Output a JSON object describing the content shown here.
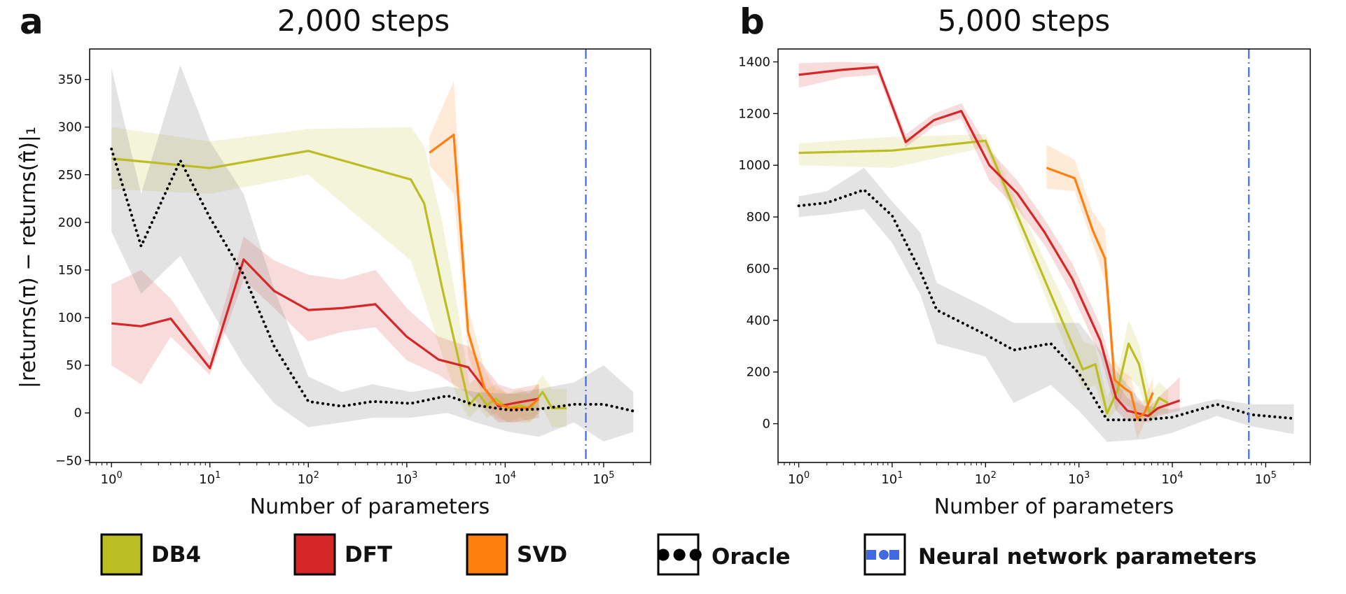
{
  "figure": {
    "ylabel": "|returns(π) − returns(π̂)|₁",
    "legend": [
      {
        "key": "db4",
        "label": "DB4",
        "color": "#bcbd22",
        "type": "swatch"
      },
      {
        "key": "dft",
        "label": "DFT",
        "color": "#d62728",
        "type": "swatch"
      },
      {
        "key": "svd",
        "label": "SVD",
        "color": "#ff7f0e",
        "type": "swatch"
      },
      {
        "key": "oracle",
        "label": "Oracle",
        "color": "#000000",
        "type": "dotted"
      },
      {
        "key": "nn",
        "label": "Neural network parameters",
        "color": "#4169e1",
        "type": "dashdot"
      }
    ]
  },
  "chart_data": [
    {
      "type": "line",
      "panel_label": "a",
      "title": "2,000 steps",
      "xlabel": "Number of parameters",
      "ylabel": "|returns(π) − returns(π̂)|₁",
      "xscale": "log",
      "xlim": [
        0.6,
        300000
      ],
      "ylim": [
        -52,
        382
      ],
      "yticks": [
        -50,
        0,
        50,
        100,
        150,
        200,
        250,
        300,
        350
      ],
      "ytick_labels": [
        "−50",
        "0",
        "50",
        "100",
        "150",
        "200",
        "250",
        "300",
        "350"
      ],
      "xticks": [
        1,
        10,
        100,
        1000,
        10000,
        100000
      ],
      "xtick_labels": [
        [
          "10",
          "0"
        ],
        [
          "10",
          "1"
        ],
        [
          "10",
          "2"
        ],
        [
          "10",
          "3"
        ],
        [
          "10",
          "4"
        ],
        [
          "10",
          "5"
        ]
      ],
      "vline": {
        "x": 66000,
        "label": "Neural network parameters"
      },
      "series": [
        {
          "name": "DB4",
          "color": "#bcbd22",
          "style": "solid",
          "x": [
            1,
            10,
            100,
            1100,
            1500,
            2300,
            3300,
            4300,
            5400,
            6500,
            8000,
            10500,
            14000,
            18000,
            24000,
            30000,
            42000
          ],
          "y": [
            267,
            257,
            275,
            245,
            220,
            130,
            60,
            8,
            20,
            8,
            15,
            5,
            8,
            5,
            22,
            5,
            5
          ],
          "lower": [
            235,
            230,
            250,
            160,
            120,
            60,
            15,
            -5,
            5,
            -5,
            0,
            -10,
            -5,
            -10,
            5,
            -15,
            -15
          ],
          "upper": [
            300,
            285,
            298,
            300,
            280,
            200,
            110,
            30,
            40,
            25,
            30,
            20,
            25,
            20,
            40,
            25,
            25
          ]
        },
        {
          "name": "DFT",
          "color": "#d62728",
          "style": "solid",
          "x": [
            1,
            2,
            4,
            10,
            22,
            45,
            100,
            220,
            480,
            1000,
            2100,
            4200,
            8500,
            12000,
            22000
          ],
          "y": [
            94,
            91,
            99,
            47,
            161,
            128,
            108,
            110,
            114,
            80,
            56,
            48,
            7,
            10,
            15
          ],
          "lower": [
            50,
            30,
            80,
            40,
            140,
            110,
            75,
            85,
            90,
            55,
            40,
            20,
            -10,
            -10,
            -5
          ],
          "upper": [
            135,
            150,
            120,
            60,
            185,
            160,
            145,
            140,
            150,
            110,
            80,
            70,
            30,
            25,
            30
          ]
        },
        {
          "name": "SVD",
          "color": "#ff7f0e",
          "style": "solid",
          "x": [
            1700,
            3000,
            4200,
            6200,
            8000,
            11500,
            17000,
            22000
          ],
          "y": [
            273,
            292,
            85,
            25,
            10,
            5,
            5,
            15
          ],
          "lower": [
            260,
            230,
            60,
            10,
            -5,
            -10,
            -10,
            0
          ],
          "upper": [
            290,
            348,
            110,
            45,
            25,
            20,
            20,
            30
          ]
        },
        {
          "name": "Oracle",
          "color": "#000000",
          "style": "dotted",
          "x": [
            1,
            2,
            5,
            10,
            22,
            45,
            100,
            220,
            450,
            1100,
            2600,
            5000,
            11000,
            22000,
            50000,
            100000,
            200000
          ],
          "y": [
            277,
            175,
            265,
            205,
            145,
            70,
            12,
            7,
            12,
            10,
            18,
            8,
            3,
            4,
            9,
            9,
            2
          ],
          "lower": [
            190,
            125,
            165,
            110,
            50,
            10,
            -15,
            -10,
            -5,
            -5,
            0,
            -10,
            -20,
            -25,
            -10,
            -30,
            -20
          ],
          "upper": [
            362,
            230,
            365,
            285,
            230,
            130,
            38,
            22,
            30,
            22,
            28,
            22,
            20,
            25,
            32,
            50,
            22
          ]
        }
      ]
    },
    {
      "type": "line",
      "panel_label": "b",
      "title": "5,000 steps",
      "xlabel": "Number of parameters",
      "ylabel": "",
      "xscale": "log",
      "xlim": [
        0.6,
        300000
      ],
      "ylim": [
        -150,
        1450
      ],
      "yticks": [
        0,
        200,
        400,
        600,
        800,
        1000,
        1200,
        1400
      ],
      "ytick_labels": [
        "0",
        "200",
        "400",
        "600",
        "800",
        "1000",
        "1200",
        "1400"
      ],
      "xticks": [
        1,
        10,
        100,
        1000,
        10000,
        100000
      ],
      "xtick_labels": [
        [
          "10",
          "0"
        ],
        [
          "10",
          "1"
        ],
        [
          "10",
          "2"
        ],
        [
          "10",
          "3"
        ],
        [
          "10",
          "4"
        ],
        [
          "10",
          "5"
        ]
      ],
      "vline": {
        "x": 66000,
        "label": "Neural network parameters"
      },
      "series": [
        {
          "name": "DB4",
          "color": "#bcbd22",
          "style": "solid",
          "x": [
            1,
            10,
            100,
            1100,
            1500,
            2000,
            2600,
            3400,
            4400,
            5800,
            7200,
            9000
          ],
          "y": [
            1048,
            1057,
            1095,
            210,
            230,
            40,
            130,
            310,
            230,
            30,
            100,
            80
          ],
          "lower": [
            1000,
            990,
            1070,
            130,
            150,
            10,
            60,
            180,
            140,
            5,
            40,
            40
          ],
          "upper": [
            1085,
            1110,
            1120,
            320,
            300,
            100,
            200,
            400,
            310,
            120,
            160,
            130
          ]
        },
        {
          "name": "DFT",
          "color": "#d62728",
          "style": "solid",
          "x": [
            1,
            3,
            7,
            14,
            28,
            55,
            110,
            220,
            430,
            850,
            1700,
            2500,
            3300,
            4300,
            5500,
            7000,
            12000
          ],
          "y": [
            1350,
            1370,
            1380,
            1090,
            1175,
            1210,
            1000,
            890,
            740,
            560,
            320,
            100,
            50,
            40,
            30,
            60,
            90
          ],
          "lower": [
            1300,
            1340,
            1350,
            1070,
            1150,
            1180,
            940,
            830,
            690,
            500,
            260,
            50,
            10,
            10,
            5,
            30,
            50
          ],
          "upper": [
            1395,
            1400,
            1395,
            1120,
            1200,
            1240,
            1060,
            940,
            790,
            620,
            380,
            160,
            100,
            80,
            60,
            100,
            180
          ]
        },
        {
          "name": "SVD",
          "color": "#ff7f0e",
          "style": "solid",
          "x": [
            450,
            900,
            1400,
            1900,
            2400,
            3000,
            3600,
            4200,
            5000,
            6200
          ],
          "y": [
            990,
            950,
            750,
            640,
            170,
            140,
            120,
            20,
            40,
            120
          ],
          "lower": [
            910,
            900,
            700,
            550,
            100,
            80,
            60,
            -60,
            0,
            60
          ],
          "upper": [
            1080,
            1020,
            820,
            750,
            240,
            200,
            180,
            90,
            90,
            180
          ]
        },
        {
          "name": "Oracle",
          "color": "#000000",
          "style": "dotted",
          "x": [
            1,
            2,
            5,
            10,
            20,
            30,
            100,
            200,
            500,
            1000,
            2000,
            5000,
            10000,
            30000,
            70000,
            200000
          ],
          "y": [
            843,
            855,
            905,
            805,
            590,
            440,
            345,
            285,
            310,
            195,
            15,
            15,
            25,
            75,
            35,
            20
          ],
          "lower": [
            800,
            810,
            830,
            700,
            500,
            310,
            260,
            80,
            150,
            50,
            -70,
            -60,
            -35,
            30,
            -10,
            -40
          ],
          "upper": [
            880,
            900,
            990,
            860,
            740,
            545,
            450,
            390,
            390,
            390,
            250,
            70,
            55,
            95,
            75,
            75
          ]
        }
      ]
    }
  ]
}
